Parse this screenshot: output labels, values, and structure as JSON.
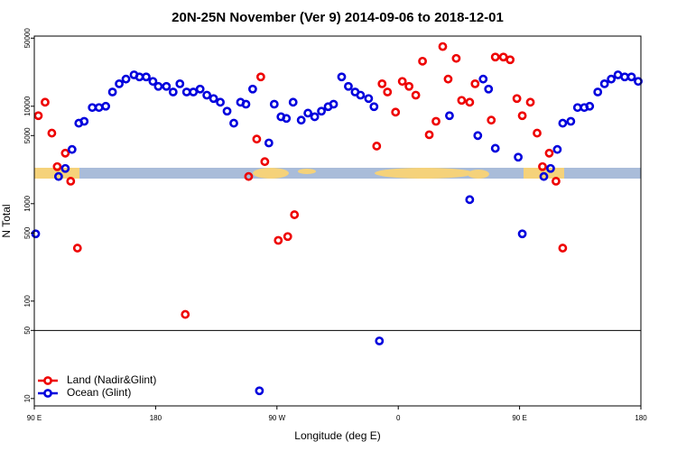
{
  "chart_data": {
    "type": "scatter",
    "title": "20N-25N November (Ver 9)   2014-09-06 to 2018-12-01",
    "xlabel": "Longitude (deg E)",
    "ylabel": "N Total",
    "log_y": true,
    "legend": "lower left",
    "hlines": [
      50
    ],
    "xlim": [
      90,
      540
    ],
    "xticks": [
      {
        "value": 90,
        "label": "90 E"
      },
      180,
      {
        "value": 270,
        "label": "90 W"
      },
      {
        "value": 360,
        "label": "0"
      },
      {
        "value": 450,
        "label": "90 E"
      },
      {
        "value": 540,
        "label": "180"
      }
    ],
    "ylim": [
      8.4,
      52500
    ],
    "yticks": [
      10,
      50,
      100,
      500,
      1000,
      5000,
      10000,
      50000
    ],
    "series": [
      {
        "name": "Land (Nadir&Glint)",
        "color": "#ee0000",
        "x": [
          93,
          98,
          103,
          107,
          113,
          117,
          122,
          202,
          249,
          255,
          258,
          261,
          271,
          278,
          283,
          344,
          348,
          352,
          358,
          363,
          368,
          373,
          378,
          383,
          388,
          393,
          397,
          403,
          407,
          413,
          417,
          429,
          432,
          438,
          443,
          448,
          452,
          458,
          463,
          467,
          472,
          477,
          482
        ],
        "values": [
          8000,
          11000,
          5300,
          2400,
          3300,
          1700,
          350,
          73,
          1900,
          4600,
          20000,
          2700,
          420,
          460,
          770,
          3900,
          17000,
          14000,
          8700,
          18000,
          16000,
          13000,
          29000,
          5100,
          7000,
          41000,
          19000,
          31000,
          11500,
          11000,
          17000,
          7200,
          32000,
          32000,
          30000,
          12000,
          8000,
          11000,
          5300,
          2400,
          3300,
          1700,
          350
        ]
      },
      {
        "name": "Ocean (Glint)",
        "color": "#0000dd",
        "x": [
          91,
          108,
          113,
          118,
          123,
          127,
          133,
          138,
          143,
          148,
          153,
          158,
          164,
          168,
          173,
          178,
          182,
          188,
          193,
          198,
          203,
          208,
          213,
          218,
          223,
          228,
          233,
          238,
          243,
          247,
          252,
          257,
          264,
          268,
          273,
          277,
          282,
          288,
          293,
          298,
          303,
          308,
          312,
          318,
          323,
          328,
          332,
          338,
          342,
          346,
          398,
          413,
          419,
          423,
          427,
          432,
          449,
          452,
          468,
          473,
          478,
          482,
          488,
          493,
          498,
          502,
          508,
          513,
          518,
          523,
          528,
          533,
          538
        ],
        "values": [
          490,
          1900,
          2300,
          3600,
          6700,
          7000,
          9700,
          9700,
          10000,
          14000,
          17000,
          19000,
          21000,
          20000,
          20000,
          18000,
          16000,
          16000,
          14000,
          17000,
          14000,
          14000,
          15000,
          13000,
          12000,
          11000,
          8900,
          6700,
          11000,
          10500,
          15000,
          12,
          4200,
          10500,
          7800,
          7500,
          11000,
          7200,
          8500,
          7800,
          8900,
          9900,
          10500,
          20000,
          16000,
          14000,
          13000,
          12000,
          9900,
          39,
          8000,
          1100,
          5000,
          19000,
          15000,
          3700,
          3000,
          490,
          1900,
          2300,
          3600,
          6700,
          7000,
          9700,
          9700,
          10000,
          14000,
          17000,
          19000,
          21000,
          20000,
          20000,
          18000
        ]
      }
    ]
  }
}
